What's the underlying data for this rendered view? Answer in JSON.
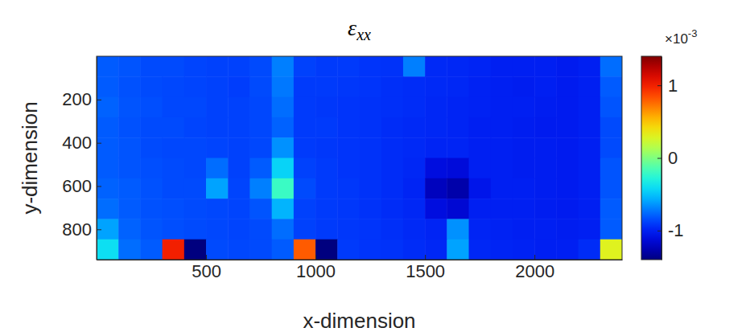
{
  "chart_data": {
    "type": "heatmap",
    "title": "ε",
    "title_subscript": "xx",
    "xlabel": "x-dimension",
    "ylabel": "y-dimension",
    "xlim": [
      0,
      2400
    ],
    "ylim": [
      0,
      940
    ],
    "xticks": [
      500,
      1000,
      1500,
      2000
    ],
    "yticks": [
      200,
      400,
      600,
      800
    ],
    "x_edges": [
      0,
      100,
      200,
      300,
      400,
      500,
      600,
      700,
      800,
      900,
      1000,
      1100,
      1200,
      1300,
      1400,
      1500,
      1600,
      1700,
      1800,
      1900,
      2000,
      2100,
      2200,
      2300,
      2400
    ],
    "y_edges": [
      0,
      94,
      188,
      282,
      376,
      470,
      564,
      658,
      752,
      846,
      940
    ],
    "cells": [
      [
        -0.8,
        -0.82,
        -0.85,
        -0.85,
        -0.87,
        -0.88,
        -0.88,
        -0.85,
        -0.7,
        -0.88,
        -0.9,
        -0.9,
        -0.92,
        -0.93,
        -0.7,
        -0.96,
        -0.97,
        -0.98,
        -1.0,
        -1.0,
        -1.0,
        -1.02,
        -1.0,
        -0.75
      ],
      [
        -0.8,
        -0.83,
        -0.85,
        -0.86,
        -0.87,
        -0.88,
        -0.89,
        -0.85,
        -0.72,
        -0.9,
        -0.9,
        -0.91,
        -0.92,
        -0.94,
        -0.95,
        -0.96,
        -0.97,
        -0.99,
        -1.0,
        -1.01,
        -1.0,
        -1.02,
        -1.0,
        -0.8
      ],
      [
        -0.78,
        -0.82,
        -0.84,
        -0.86,
        -0.86,
        -0.88,
        -0.88,
        -0.86,
        -0.75,
        -0.9,
        -0.91,
        -0.92,
        -0.93,
        -0.94,
        -0.95,
        -0.97,
        -0.98,
        -0.99,
        -1.0,
        -1.0,
        -1.01,
        -1.02,
        -1.0,
        -0.82
      ],
      [
        -0.8,
        -0.83,
        -0.85,
        -0.85,
        -0.87,
        -0.88,
        -0.88,
        -0.86,
        -0.78,
        -0.9,
        -0.9,
        -0.92,
        -0.93,
        -0.95,
        -0.96,
        -0.97,
        -0.98,
        -1.0,
        -1.0,
        -1.01,
        -1.02,
        -1.02,
        -1.0,
        -0.85
      ],
      [
        -0.8,
        -0.82,
        -0.85,
        -0.86,
        -0.86,
        -0.87,
        -0.88,
        -0.86,
        -0.65,
        -0.9,
        -0.91,
        -0.92,
        -0.93,
        -0.95,
        -0.96,
        -0.98,
        -0.98,
        -1.0,
        -1.0,
        -1.01,
        -1.01,
        -1.02,
        -1.0,
        -0.85
      ],
      [
        -0.8,
        -0.82,
        -0.84,
        -0.85,
        -0.86,
        -0.75,
        -0.88,
        -0.8,
        -0.45,
        -0.88,
        -0.9,
        -0.92,
        -0.93,
        -0.95,
        -0.97,
        -1.1,
        -1.12,
        -1.0,
        -1.0,
        -1.01,
        -1.01,
        -1.02,
        -1.0,
        -0.82
      ],
      [
        -0.78,
        -0.8,
        -0.83,
        -0.85,
        -0.85,
        -0.6,
        -0.87,
        -0.7,
        -0.2,
        -0.85,
        -0.9,
        -0.91,
        -0.93,
        -0.95,
        -0.98,
        -1.22,
        -1.28,
        -1.05,
        -1.0,
        -1.0,
        -1.01,
        -1.02,
        -1.0,
        -0.82
      ],
      [
        -0.75,
        -0.8,
        -0.83,
        -0.84,
        -0.85,
        -0.86,
        -0.87,
        -0.82,
        -0.55,
        -0.88,
        -0.9,
        -0.91,
        -0.93,
        -0.95,
        -0.97,
        -1.1,
        -1.15,
        -1.0,
        -1.0,
        -1.0,
        -1.01,
        -1.02,
        -1.0,
        -0.8
      ],
      [
        -0.6,
        -0.78,
        -0.82,
        -0.84,
        -0.85,
        -0.86,
        -0.87,
        -0.85,
        -0.75,
        -0.88,
        -0.9,
        -0.91,
        -0.92,
        -0.94,
        -0.96,
        -0.98,
        -0.65,
        -0.98,
        -0.99,
        -1.0,
        -1.0,
        -1.01,
        -1.0,
        -0.8
      ],
      [
        -0.4,
        -0.75,
        -0.8,
        1.0,
        -1.4,
        -0.85,
        -0.86,
        -0.85,
        -0.8,
        0.8,
        -1.4,
        -0.9,
        -0.92,
        -0.93,
        -0.95,
        -0.97,
        -0.6,
        -0.97,
        -0.98,
        -0.99,
        -1.0,
        -1.0,
        -0.95,
        0.3
      ]
    ],
    "colorbar": {
      "range": [
        -1.4,
        1.4
      ],
      "ticks": [
        -1,
        0,
        1
      ],
      "multiplier": "×10",
      "exponent": "-3"
    }
  }
}
